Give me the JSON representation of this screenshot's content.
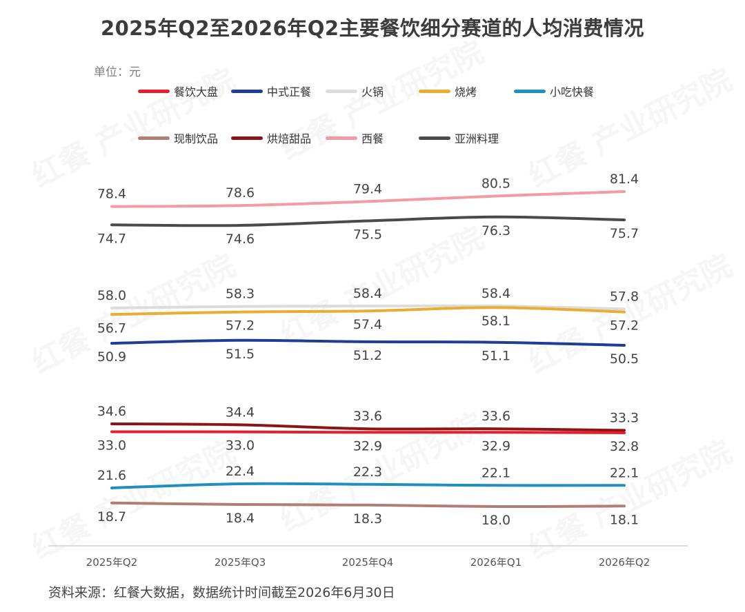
{
  "title": "2025年Q2至2026年Q2主要餐饮细分赛道的人均消费情况",
  "unit_label": "单位：元",
  "source_note": "资料来源：红餐大数据，数据统计时间截至2026年6月30日",
  "watermark": "红餐 产业研究院",
  "chart_data": {
    "type": "line",
    "title": "2025年Q2至2026年Q2主要餐饮细分赛道的人均消费情况",
    "ylabel": "单位：元",
    "x": [
      "2025年Q2",
      "2025年Q3",
      "2025年Q4",
      "2026年Q1",
      "2026年Q2"
    ],
    "grid": false,
    "legend_position": "top",
    "series": [
      {
        "name": "餐饮大盘",
        "color": "#e5202e",
        "values": [
          33.0,
          33.0,
          32.9,
          32.9,
          32.8
        ],
        "label_side": "below"
      },
      {
        "name": "中式正餐",
        "color": "#1f3c96",
        "values": [
          50.9,
          51.5,
          51.2,
          51.1,
          50.5
        ],
        "label_side": "below"
      },
      {
        "name": "火锅",
        "color": "#dcdcdc",
        "values": [
          58.0,
          58.3,
          58.4,
          58.4,
          57.8
        ],
        "label_side": "above"
      },
      {
        "name": "烧烤",
        "color": "#e9ad32",
        "values": [
          56.7,
          57.2,
          57.4,
          58.1,
          57.2
        ],
        "label_side": "below"
      },
      {
        "name": "小吃快餐",
        "color": "#1f8fc0",
        "values": [
          21.6,
          22.4,
          22.3,
          22.1,
          22.1
        ],
        "label_side": "above"
      },
      {
        "name": "现制饮品",
        "color": "#b07e76",
        "values": [
          18.7,
          18.4,
          18.3,
          18.0,
          18.1
        ],
        "label_side": "below"
      },
      {
        "name": "烘焙甜品",
        "color": "#8c1414",
        "values": [
          34.6,
          34.4,
          33.6,
          33.6,
          33.3
        ],
        "label_side": "above"
      },
      {
        "name": "西餐",
        "color": "#f59aa2",
        "values": [
          78.4,
          78.6,
          79.4,
          80.5,
          81.4
        ],
        "label_side": "above"
      },
      {
        "name": "亚洲料理",
        "color": "#4a4a4a",
        "values": [
          74.7,
          74.6,
          75.5,
          76.3,
          75.7
        ],
        "label_side": "below"
      }
    ]
  }
}
